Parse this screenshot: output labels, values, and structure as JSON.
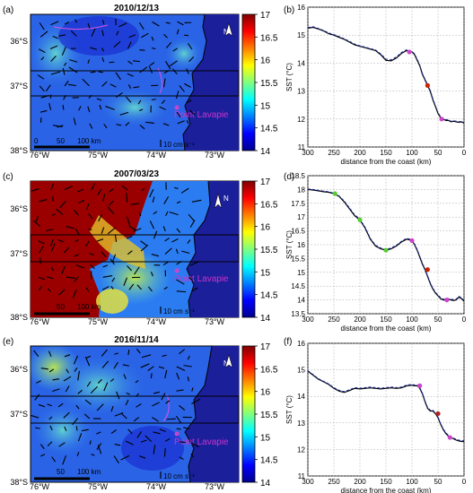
{
  "figure": {
    "map_axes": {
      "x_ticks": [
        "76°W",
        "75°W",
        "74°W",
        "73°W"
      ],
      "y_ticks": [
        "36°S",
        "37°S",
        "38°S"
      ],
      "colorbar_ticks": [
        "17",
        "16.5",
        "16",
        "15.5",
        "15",
        "14.5",
        "14"
      ],
      "colorbar_range": [
        14,
        17
      ],
      "scale_ticks": [
        "0",
        "50",
        "100 km"
      ],
      "vector_scale": "10 cm s⁻¹",
      "place_label": "Point Lavapie",
      "north_label": "N"
    },
    "profile_axes": {
      "xlabel": "distance from the coast (km)",
      "ylabel": "SST (°C)"
    }
  },
  "chart_data": [
    {
      "panel": "(a)",
      "type": "heatmap",
      "title": "2010/12/13",
      "dominant": "blue",
      "notes": "cool water near coast, SST mostly 14-15.5 °C"
    },
    {
      "panel": "(b)",
      "type": "line",
      "title": "",
      "xlabel": "distance from the coast (km)",
      "ylabel": "SST (°C)",
      "xlim": [
        300,
        0
      ],
      "ylim": [
        11,
        16
      ],
      "x_ticks": [
        300,
        250,
        200,
        150,
        100,
        50,
        0
      ],
      "y_ticks": [
        11,
        12,
        13,
        14,
        15,
        16
      ],
      "grid": true,
      "series": [
        {
          "style": "solid",
          "x": [
            300,
            290,
            280,
            270,
            260,
            250,
            240,
            230,
            220,
            210,
            200,
            190,
            180,
            170,
            160,
            150,
            140,
            130,
            120,
            110,
            100,
            95,
            90,
            85,
            80,
            75,
            70,
            65,
            60,
            55,
            50,
            45,
            40,
            35,
            30,
            25,
            20,
            15,
            10,
            5,
            0
          ],
          "y": [
            15.25,
            15.28,
            15.22,
            15.15,
            15.05,
            15.0,
            14.92,
            14.85,
            14.75,
            14.65,
            14.6,
            14.55,
            14.5,
            14.45,
            14.3,
            14.1,
            14.08,
            14.18,
            14.35,
            14.45,
            14.4,
            14.3,
            14.1,
            13.9,
            13.6,
            13.4,
            13.2,
            13.0,
            12.7,
            12.45,
            12.2,
            12.05,
            12.0,
            11.95,
            11.95,
            11.9,
            11.92,
            11.9,
            11.88,
            11.9,
            11.85
          ]
        },
        {
          "style": "dashed",
          "x": [
            300,
            290,
            280,
            270,
            260,
            250,
            240,
            230,
            220,
            210,
            200,
            190,
            180,
            170,
            160,
            150,
            140,
            130,
            120,
            110,
            100,
            95,
            90,
            85,
            80,
            75,
            70,
            65,
            60,
            55,
            50,
            45,
            40,
            35,
            30,
            25,
            20,
            15,
            10,
            5,
            0
          ],
          "y": [
            15.27,
            15.3,
            15.24,
            15.17,
            15.08,
            15.02,
            14.95,
            14.87,
            14.78,
            14.68,
            14.62,
            14.57,
            14.52,
            14.47,
            14.33,
            14.14,
            14.12,
            14.22,
            14.38,
            14.48,
            14.42,
            14.33,
            14.14,
            13.93,
            13.63,
            13.43,
            13.23,
            13.03,
            12.73,
            12.48,
            12.23,
            12.08,
            12.03,
            11.98,
            11.97,
            11.92,
            11.94,
            11.92,
            11.9,
            11.92,
            11.87
          ]
        }
      ],
      "markers": [
        {
          "x": 105,
          "y": 14.4,
          "color": "#cc44cc"
        },
        {
          "x": 70,
          "y": 13.2,
          "color": "#cc2200"
        },
        {
          "x": 43,
          "y": 12.0,
          "color": "#cc44cc"
        }
      ]
    },
    {
      "panel": "(c)",
      "type": "heatmap",
      "title": "2007/03/23",
      "dominant": "red",
      "notes": "warm offshore water >17 °C, cold coastal strip"
    },
    {
      "panel": "(d)",
      "type": "line",
      "title": "",
      "xlabel": "distance from the coast (km)",
      "ylabel": "SST (°C)",
      "xlim": [
        300,
        0
      ],
      "ylim": [
        13.5,
        18.5
      ],
      "x_ticks": [
        300,
        250,
        200,
        150,
        100,
        50,
        0
      ],
      "y_ticks": [
        13.5,
        14,
        14.5,
        15,
        15.5,
        16,
        16.5,
        17,
        17.5,
        18,
        18.5
      ],
      "grid": true,
      "series": [
        {
          "style": "solid",
          "x": [
            300,
            290,
            280,
            270,
            260,
            250,
            240,
            230,
            220,
            210,
            200,
            190,
            180,
            170,
            160,
            150,
            140,
            130,
            120,
            110,
            100,
            95,
            90,
            85,
            80,
            75,
            70,
            65,
            60,
            55,
            50,
            45,
            40,
            35,
            30,
            25,
            20,
            15,
            10,
            5,
            0
          ],
          "y": [
            18.0,
            17.98,
            17.95,
            17.92,
            17.9,
            17.85,
            17.75,
            17.55,
            17.3,
            17.05,
            16.9,
            16.6,
            16.2,
            15.95,
            15.85,
            15.8,
            15.85,
            15.95,
            16.1,
            16.2,
            16.15,
            16.0,
            15.8,
            15.55,
            15.3,
            15.1,
            14.85,
            14.6,
            14.4,
            14.25,
            14.15,
            14.05,
            14.0,
            14.0,
            14.02,
            14.0,
            13.98,
            14.0,
            14.1,
            14.05,
            13.95
          ]
        },
        {
          "style": "dashed",
          "x": [
            300,
            290,
            280,
            270,
            260,
            250,
            240,
            230,
            220,
            210,
            200,
            190,
            180,
            170,
            160,
            150,
            140,
            130,
            120,
            110,
            100,
            95,
            90,
            85,
            80,
            75,
            70,
            65,
            60,
            55,
            50,
            45,
            40,
            35,
            30,
            25,
            20,
            15,
            10,
            5,
            0
          ],
          "y": [
            18.02,
            18.0,
            17.97,
            17.94,
            17.92,
            17.87,
            17.77,
            17.58,
            17.33,
            17.08,
            16.93,
            16.63,
            16.23,
            15.98,
            15.88,
            15.83,
            15.88,
            15.98,
            16.13,
            16.23,
            16.18,
            16.03,
            15.83,
            15.58,
            15.33,
            15.13,
            14.88,
            14.63,
            14.43,
            14.28,
            14.18,
            14.08,
            14.03,
            14.03,
            14.05,
            14.03,
            14.01,
            14.03,
            14.13,
            14.08,
            13.98
          ]
        }
      ],
      "markers": [
        {
          "x": 248,
          "y": 17.85,
          "color": "#55cc33"
        },
        {
          "x": 200,
          "y": 16.9,
          "color": "#55cc33"
        },
        {
          "x": 150,
          "y": 15.8,
          "color": "#55cc33"
        },
        {
          "x": 100,
          "y": 16.15,
          "color": "#cc44cc"
        },
        {
          "x": 70,
          "y": 15.1,
          "color": "#cc2200"
        },
        {
          "x": 33,
          "y": 14.0,
          "color": "#cc44cc"
        }
      ]
    },
    {
      "panel": "(e)",
      "type": "heatmap",
      "title": "2016/11/14",
      "dominant": "blue",
      "notes": "mostly cool water, warmer patch offshore north-west"
    },
    {
      "panel": "(f)",
      "type": "line",
      "title": "",
      "xlabel": "distance from the coast (km)",
      "ylabel": "SST (°C)",
      "xlim": [
        300,
        0
      ],
      "ylim": [
        11,
        16
      ],
      "x_ticks": [
        300,
        250,
        200,
        150,
        100,
        50,
        0
      ],
      "y_ticks": [
        11,
        12,
        13,
        14,
        15,
        16
      ],
      "grid": true,
      "series": [
        {
          "style": "solid",
          "x": [
            300,
            290,
            280,
            270,
            260,
            250,
            240,
            230,
            220,
            210,
            200,
            190,
            180,
            170,
            160,
            150,
            140,
            130,
            120,
            110,
            100,
            95,
            90,
            85,
            80,
            75,
            70,
            65,
            60,
            55,
            50,
            45,
            40,
            35,
            30,
            25,
            20,
            15,
            10,
            5,
            0
          ],
          "y": [
            14.95,
            14.8,
            14.65,
            14.55,
            14.45,
            14.3,
            14.2,
            14.15,
            14.22,
            14.3,
            14.28,
            14.3,
            14.32,
            14.3,
            14.28,
            14.3,
            14.32,
            14.3,
            14.32,
            14.4,
            14.42,
            14.4,
            14.4,
            14.3,
            14.1,
            13.8,
            13.55,
            13.45,
            13.45,
            13.35,
            13.2,
            12.95,
            12.75,
            12.6,
            12.5,
            12.45,
            12.4,
            12.35,
            12.32,
            12.3,
            12.3
          ]
        },
        {
          "style": "dashed",
          "x": [
            300,
            290,
            280,
            270,
            260,
            250,
            240,
            230,
            220,
            210,
            200,
            190,
            180,
            170,
            160,
            150,
            140,
            130,
            120,
            110,
            100,
            95,
            90,
            85,
            80,
            75,
            70,
            65,
            60,
            55,
            50,
            45,
            40,
            35,
            30,
            25,
            20,
            15,
            10,
            5,
            0
          ],
          "y": [
            14.97,
            14.82,
            14.67,
            14.57,
            14.47,
            14.33,
            14.23,
            14.18,
            14.25,
            14.33,
            14.31,
            14.33,
            14.35,
            14.33,
            14.31,
            14.33,
            14.35,
            14.33,
            14.35,
            14.43,
            14.45,
            14.43,
            14.43,
            14.33,
            14.13,
            13.83,
            13.58,
            13.48,
            13.48,
            13.38,
            13.23,
            12.98,
            12.78,
            12.63,
            12.53,
            12.48,
            12.43,
            12.38,
            12.35,
            12.33,
            12.33
          ]
        }
      ],
      "markers": [
        {
          "x": 85,
          "y": 14.4,
          "color": "#cc44cc"
        },
        {
          "x": 50,
          "y": 13.35,
          "color": "#aa2222"
        },
        {
          "x": 27,
          "y": 12.45,
          "color": "#cc44cc"
        }
      ]
    }
  ]
}
